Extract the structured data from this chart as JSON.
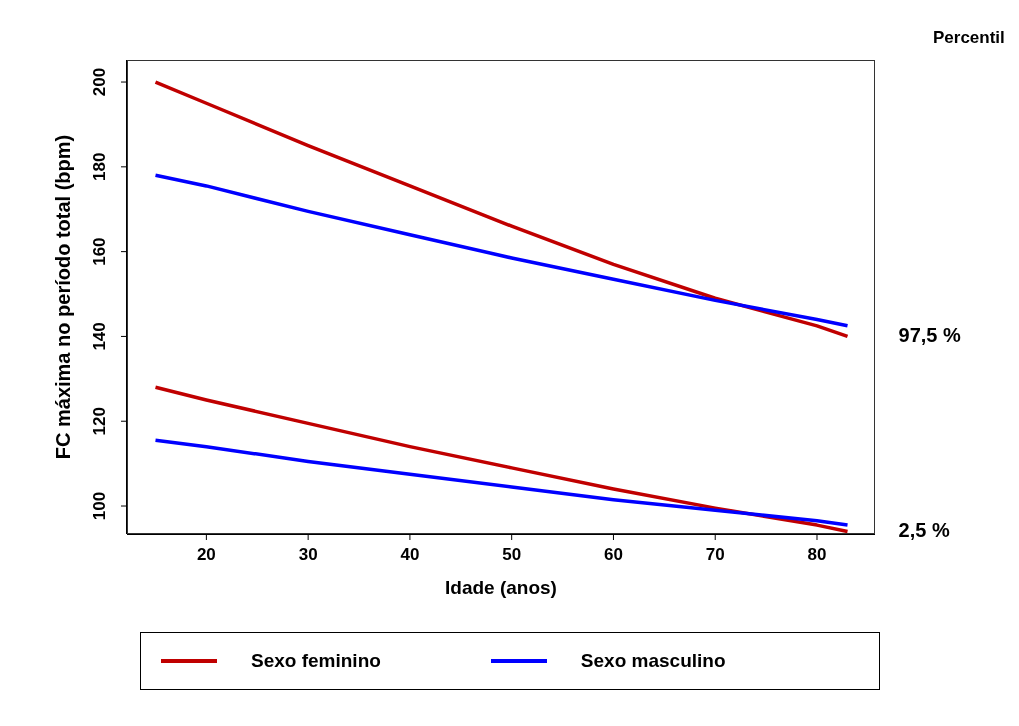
{
  "chart_data": {
    "type": "line",
    "xlabel": "Idade (anos)",
    "ylabel": "FC máxima no período total (bpm)",
    "x": [
      15,
      20,
      30,
      40,
      50,
      60,
      70,
      80,
      83
    ],
    "series": [
      {
        "name": "Sexo feminino",
        "color": "#c00000",
        "values": [
          200,
          195,
          185,
          175.5,
          166,
          157,
          149,
          142.5,
          140
        ]
      },
      {
        "name": "Sexo masculino",
        "color": "#0000ff",
        "values": [
          178,
          175.5,
          169.5,
          164,
          158.5,
          153.5,
          148.5,
          144,
          142.5
        ]
      },
      {
        "color": "#c00000",
        "values": [
          128,
          125,
          119.5,
          114,
          109,
          104,
          99.5,
          95.5,
          94
        ]
      },
      {
        "color": "#0000ff",
        "values": [
          115.5,
          114,
          110.5,
          107.5,
          104.5,
          101.5,
          99,
          96.5,
          95.5
        ]
      }
    ],
    "xlim": [
      12.2,
      85.7
    ],
    "ylim": [
      93.4,
      205.2
    ],
    "xticks": [
      20,
      30,
      40,
      50,
      60,
      70,
      80
    ],
    "yticks": [
      100,
      120,
      140,
      160,
      180,
      200
    ],
    "annotations": [
      "Percentil",
      {
        "text": "97,5 %",
        "x": 83,
        "y": 140
      },
      {
        "text": "2,5 %",
        "x": 83,
        "y": 94
      }
    ],
    "grid": false,
    "legend": "bottom",
    "marker": "none",
    "line_style": "solid"
  }
}
